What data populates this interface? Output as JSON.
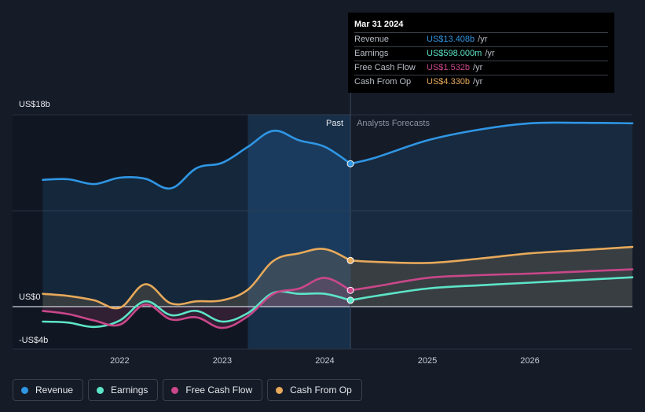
{
  "chart_data": {
    "type": "line",
    "x_ticks": [
      {
        "year": 2022,
        "label": "2022"
      },
      {
        "year": 2023,
        "label": "2023"
      },
      {
        "year": 2024,
        "label": "2024"
      },
      {
        "year": 2025,
        "label": "2025"
      },
      {
        "year": 2026,
        "label": "2026"
      }
    ],
    "y_ticks": [
      {
        "value": 18,
        "label": "US$18b"
      },
      {
        "value": 0,
        "label": "US$0"
      },
      {
        "value": -4,
        "label": "-US$4b"
      }
    ],
    "xlim": [
      2021.2,
      2027.0
    ],
    "ylim": [
      -4,
      18
    ],
    "past_end": 2024.25,
    "highlight_start": 2023.25,
    "divider_labels": {
      "past": "Past",
      "forecast": "Analysts Forecasts"
    },
    "series": [
      {
        "name": "Revenue",
        "color": "#2f96e4",
        "fill": true,
        "marker": {
          "x": 2024.25,
          "y": 13.408
        },
        "past": [
          [
            2021.25,
            11.9
          ],
          [
            2021.5,
            11.95
          ],
          [
            2021.75,
            11.5
          ],
          [
            2022.0,
            12.1
          ],
          [
            2022.25,
            12.0
          ],
          [
            2022.5,
            11.1
          ],
          [
            2022.75,
            13.0
          ],
          [
            2023.0,
            13.5
          ],
          [
            2023.25,
            15.0
          ],
          [
            2023.5,
            16.5
          ],
          [
            2023.75,
            15.6
          ],
          [
            2024.0,
            15.0
          ],
          [
            2024.25,
            13.408
          ]
        ],
        "forecast": [
          [
            2024.25,
            13.408
          ],
          [
            2024.5,
            14.0
          ],
          [
            2025.0,
            15.6
          ],
          [
            2025.5,
            16.6
          ],
          [
            2026.0,
            17.2
          ],
          [
            2026.5,
            17.25
          ],
          [
            2027.0,
            17.2
          ]
        ]
      },
      {
        "name": "Earnings",
        "color": "#5de4c7",
        "fill": false,
        "marker": {
          "x": 2024.25,
          "y": 0.598
        },
        "past": [
          [
            2021.25,
            -1.4
          ],
          [
            2021.5,
            -1.5
          ],
          [
            2021.75,
            -1.9
          ],
          [
            2022.0,
            -1.3
          ],
          [
            2022.25,
            0.5
          ],
          [
            2022.5,
            -0.8
          ],
          [
            2022.75,
            -0.4
          ],
          [
            2023.0,
            -1.4
          ],
          [
            2023.25,
            -0.6
          ],
          [
            2023.5,
            1.3
          ],
          [
            2023.75,
            1.2
          ],
          [
            2024.0,
            1.2
          ],
          [
            2024.25,
            0.598
          ]
        ],
        "forecast": [
          [
            2024.25,
            0.598
          ],
          [
            2024.5,
            1.0
          ],
          [
            2025.0,
            1.7
          ],
          [
            2025.5,
            2.0
          ],
          [
            2026.0,
            2.25
          ],
          [
            2026.5,
            2.5
          ],
          [
            2027.0,
            2.75
          ]
        ]
      },
      {
        "name": "Free Cash Flow",
        "color": "#c9478a",
        "fill": false,
        "marker": {
          "x": 2024.25,
          "y": 1.532
        },
        "past": [
          [
            2021.25,
            -0.4
          ],
          [
            2021.5,
            -0.7
          ],
          [
            2021.75,
            -1.3
          ],
          [
            2022.0,
            -1.7
          ],
          [
            2022.25,
            0.2
          ],
          [
            2022.5,
            -1.2
          ],
          [
            2022.75,
            -1.0
          ],
          [
            2023.0,
            -2.0
          ],
          [
            2023.25,
            -0.9
          ],
          [
            2023.5,
            1.2
          ],
          [
            2023.75,
            1.7
          ],
          [
            2024.0,
            2.7
          ],
          [
            2024.25,
            1.532
          ]
        ],
        "forecast": [
          [
            2024.25,
            1.532
          ],
          [
            2024.5,
            1.9
          ],
          [
            2025.0,
            2.7
          ],
          [
            2025.5,
            2.95
          ],
          [
            2026.0,
            3.1
          ],
          [
            2026.5,
            3.3
          ],
          [
            2027.0,
            3.5
          ]
        ]
      },
      {
        "name": "Cash From Op",
        "color": "#e7a95a",
        "fill": true,
        "marker": {
          "x": 2024.25,
          "y": 4.33
        },
        "past": [
          [
            2021.25,
            1.2
          ],
          [
            2021.5,
            1.0
          ],
          [
            2021.75,
            0.6
          ],
          [
            2022.0,
            -0.1
          ],
          [
            2022.25,
            2.1
          ],
          [
            2022.5,
            0.3
          ],
          [
            2022.75,
            0.5
          ],
          [
            2023.0,
            0.6
          ],
          [
            2023.25,
            1.6
          ],
          [
            2023.5,
            4.3
          ],
          [
            2023.75,
            5.0
          ],
          [
            2024.0,
            5.4
          ],
          [
            2024.25,
            4.33
          ]
        ],
        "forecast": [
          [
            2024.25,
            4.33
          ],
          [
            2024.5,
            4.2
          ],
          [
            2025.0,
            4.1
          ],
          [
            2025.5,
            4.5
          ],
          [
            2026.0,
            5.0
          ],
          [
            2026.5,
            5.3
          ],
          [
            2027.0,
            5.6
          ]
        ]
      }
    ]
  },
  "tooltip": {
    "date": "Mar 31 2024",
    "rows": [
      {
        "label": "Revenue",
        "value": "US$13.408b",
        "unit": "/yr",
        "color": "#2f96e4"
      },
      {
        "label": "Earnings",
        "value": "US$598.000m",
        "unit": "/yr",
        "color": "#5de4c7"
      },
      {
        "label": "Free Cash Flow",
        "value": "US$1.532b",
        "unit": "/yr",
        "color": "#c9478a"
      },
      {
        "label": "Cash From Op",
        "value": "US$4.330b",
        "unit": "/yr",
        "color": "#e7a95a"
      }
    ]
  },
  "legend": [
    {
      "label": "Revenue",
      "color": "#2f96e4"
    },
    {
      "label": "Earnings",
      "color": "#5de4c7"
    },
    {
      "label": "Free Cash Flow",
      "color": "#c9478a"
    },
    {
      "label": "Cash From Op",
      "color": "#e7a95a"
    }
  ]
}
